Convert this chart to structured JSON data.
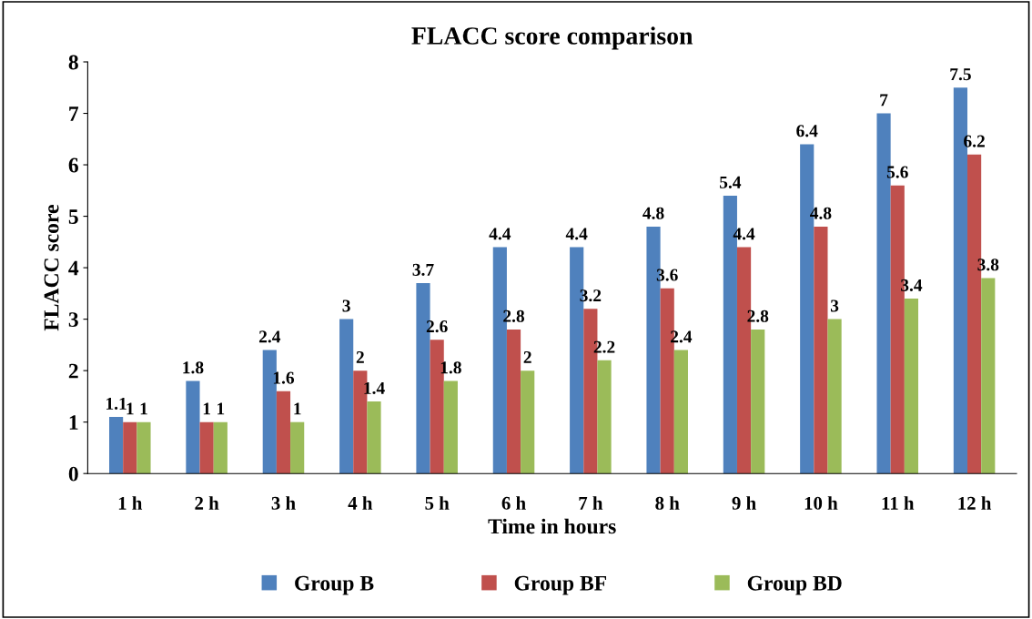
{
  "chart_data": {
    "type": "bar",
    "title": "FLACC score comparison",
    "xlabel": "Time in hours",
    "ylabel": "FLACC score",
    "categories": [
      "1 h",
      "2 h",
      "3 h",
      "4 h",
      "5 h",
      "6 h",
      "7 h",
      "8 h",
      "9 h",
      "10 h",
      "11 h",
      "12 h"
    ],
    "series": [
      {
        "name": "Group B",
        "color": "#4f81bd",
        "values": [
          1.1,
          1.8,
          2.4,
          3,
          3.7,
          4.4,
          4.4,
          4.8,
          5.4,
          6.4,
          7,
          7.5
        ]
      },
      {
        "name": "Group BF",
        "color": "#c0504d",
        "values": [
          1,
          1,
          1.6,
          2,
          2.6,
          2.8,
          3.2,
          3.6,
          4.4,
          4.8,
          5.6,
          6.2
        ]
      },
      {
        "name": "Group BD",
        "color": "#9bbb59",
        "values": [
          1,
          1,
          1,
          1.4,
          1.8,
          2,
          2.2,
          2.4,
          2.8,
          3,
          3.4,
          3.8
        ]
      }
    ],
    "ylim": [
      0,
      8
    ],
    "yticks": [
      0,
      1,
      2,
      3,
      4,
      5,
      6,
      7,
      8
    ],
    "data_labels": true,
    "grid": false,
    "legend": "bottom"
  }
}
